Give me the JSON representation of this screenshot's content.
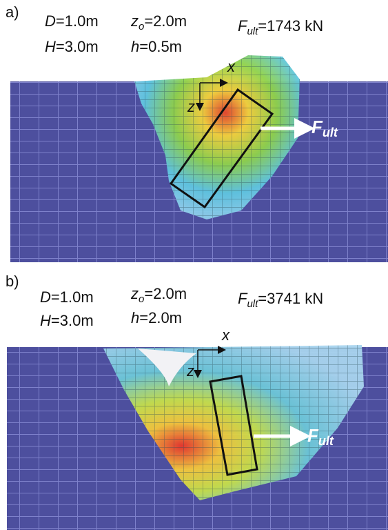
{
  "panels": [
    {
      "label": "a)",
      "parameters": [
        {
          "symbol": "D",
          "value": "=1.0m"
        },
        {
          "symbol": "z",
          "subscript": "o",
          "value": "=2.0m"
        },
        {
          "symbol": "H",
          "value": "=3.0m"
        },
        {
          "symbol": "h",
          "value": "=0.5m"
        }
      ],
      "force": {
        "symbol": "F",
        "subscript": "ult",
        "value": "=1743 kN"
      },
      "axes": {
        "x": "x",
        "z": "z"
      },
      "arrow_label": {
        "symbol": "F",
        "subscript": "ult"
      }
    },
    {
      "label": "b)",
      "parameters": [
        {
          "symbol": "D",
          "value": "=1.0m"
        },
        {
          "symbol": "z",
          "subscript": "o",
          "value": "=2.0m"
        },
        {
          "symbol": "H",
          "value": "=3.0m"
        },
        {
          "symbol": "h",
          "value": "=2.0m"
        }
      ],
      "force": {
        "symbol": "F",
        "subscript": "ult",
        "value": "=3741 kN"
      },
      "axes": {
        "x": "x",
        "z": "z"
      },
      "arrow_label": {
        "symbol": "F",
        "subscript": "ult"
      }
    }
  ]
}
